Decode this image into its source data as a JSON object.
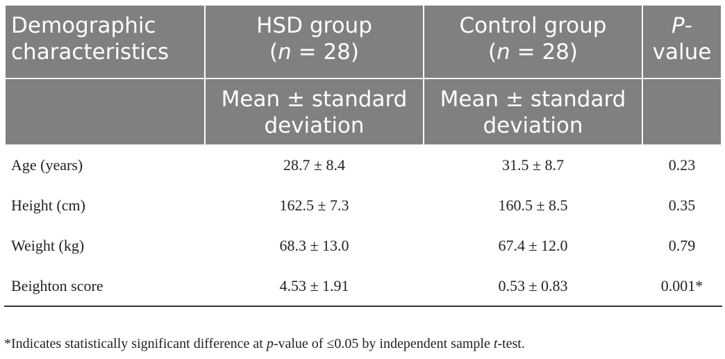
{
  "table": {
    "header": {
      "col1": "Demographic characteristics",
      "col2_line1": "HSD group",
      "col2_n": "n",
      "col2_eq": " = 28)",
      "col3_line1": "Control group",
      "col3_n": "n",
      "col3_eq": " = 28)",
      "col4_p": "P",
      "col4_rest": "-value"
    },
    "subheader": {
      "col2": "Mean ± standard deviation",
      "col3": "Mean ± standard deviation"
    },
    "rows": [
      {
        "label": "Age (years)",
        "hsd": "28.7 ± 8.4",
        "control": "31.5 ± 8.7",
        "p": "0.23"
      },
      {
        "label": "Height (cm)",
        "hsd": "162.5 ± 7.3",
        "control": "160.5 ± 8.5",
        "p": "0.35"
      },
      {
        "label": "Weight (kg)",
        "hsd": "68.3 ± 13.0",
        "control": "67.4 ± 12.0",
        "p": "0.79"
      },
      {
        "label": "Beighton score",
        "hsd": "4.53 ± 1.91",
        "control": "0.53 ± 0.83",
        "p": "0.001*"
      }
    ]
  },
  "footnote": {
    "part1": "*Indicates statistically significant difference at ",
    "p_italic": "p",
    "part2": "-value of ≤0.05 by independent sample ",
    "t_italic": "t",
    "part3": "-test."
  },
  "colors": {
    "header_bg": "#808080",
    "header_text": "#ffffff",
    "body_text": "#222222"
  }
}
